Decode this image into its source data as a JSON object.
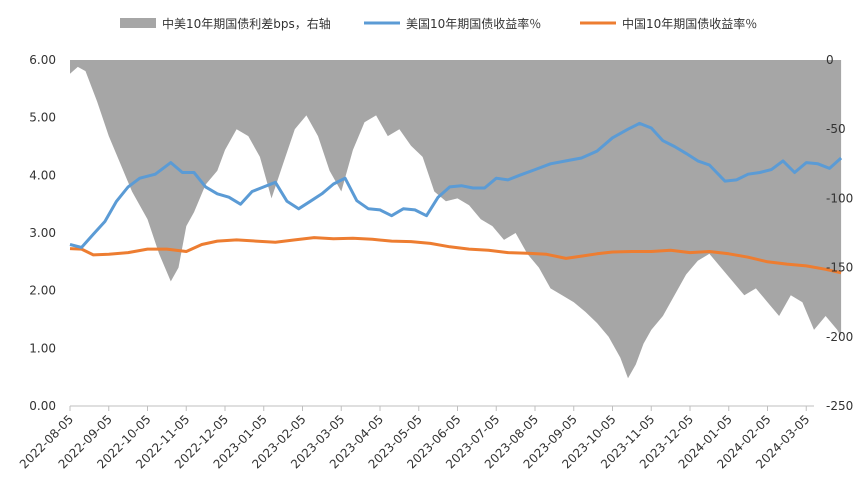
{
  "chart_data": {
    "type": "combo",
    "legend": [
      {
        "label": "中美10年期国债利差bps，右轴",
        "type": "area",
        "color": "#a6a6a6"
      },
      {
        "label": "美国10年期国债收益率％",
        "type": "line",
        "color": "#5b9bd5"
      },
      {
        "label": "中国10年期国债收益率％",
        "type": "line",
        "color": "#ed7d31"
      }
    ],
    "left_axis": {
      "min": 0,
      "max": 6,
      "ticks": [
        "0.00",
        "1.00",
        "2.00",
        "3.00",
        "4.00",
        "5.00",
        "6.00"
      ]
    },
    "right_axis": {
      "min": -250,
      "max": 0,
      "ticks": [
        "-250",
        "-200",
        "-150",
        "-100",
        "-50",
        "0"
      ]
    },
    "x_labels": [
      "2022-08-05",
      "2022-09-05",
      "2022-10-05",
      "2022-11-05",
      "2022-12-05",
      "2023-01-05",
      "2023-02-05",
      "2023-03-05",
      "2023-04-05",
      "2023-05-05",
      "2023-06-05",
      "2023-07-05",
      "2023-08-05",
      "2023-09-05",
      "2023-10-05",
      "2023-11-05",
      "2023-12-05",
      "2024-01-05",
      "2024-02-05",
      "2024-03-05"
    ],
    "series": [
      {
        "name": "美国10年期国债收益率％",
        "axis": "left",
        "points": [
          [
            0,
            2.8
          ],
          [
            0.3,
            2.75
          ],
          [
            0.6,
            2.98
          ],
          [
            0.9,
            3.2
          ],
          [
            1.2,
            3.55
          ],
          [
            1.5,
            3.8
          ],
          [
            1.8,
            3.95
          ],
          [
            2.2,
            4.02
          ],
          [
            2.6,
            4.22
          ],
          [
            2.9,
            4.05
          ],
          [
            3.2,
            4.05
          ],
          [
            3.5,
            3.8
          ],
          [
            3.8,
            3.68
          ],
          [
            4.1,
            3.62
          ],
          [
            4.4,
            3.5
          ],
          [
            4.7,
            3.72
          ],
          [
            5.0,
            3.8
          ],
          [
            5.3,
            3.88
          ],
          [
            5.6,
            3.55
          ],
          [
            5.9,
            3.42
          ],
          [
            6.2,
            3.55
          ],
          [
            6.5,
            3.68
          ],
          [
            6.8,
            3.85
          ],
          [
            7.1,
            3.95
          ],
          [
            7.4,
            3.56
          ],
          [
            7.7,
            3.42
          ],
          [
            8.0,
            3.4
          ],
          [
            8.3,
            3.3
          ],
          [
            8.6,
            3.42
          ],
          [
            8.9,
            3.4
          ],
          [
            9.2,
            3.3
          ],
          [
            9.5,
            3.62
          ],
          [
            9.8,
            3.8
          ],
          [
            10.1,
            3.82
          ],
          [
            10.4,
            3.78
          ],
          [
            10.7,
            3.78
          ],
          [
            11.0,
            3.95
          ],
          [
            11.3,
            3.92
          ],
          [
            11.6,
            4.0
          ],
          [
            12.0,
            4.1
          ],
          [
            12.4,
            4.2
          ],
          [
            12.8,
            4.25
          ],
          [
            13.2,
            4.3
          ],
          [
            13.6,
            4.42
          ],
          [
            14.0,
            4.65
          ],
          [
            14.4,
            4.8
          ],
          [
            14.7,
            4.9
          ],
          [
            15.0,
            4.82
          ],
          [
            15.3,
            4.6
          ],
          [
            15.6,
            4.5
          ],
          [
            15.9,
            4.38
          ],
          [
            16.2,
            4.25
          ],
          [
            16.5,
            4.18
          ],
          [
            16.9,
            3.9
          ],
          [
            17.2,
            3.92
          ],
          [
            17.5,
            4.02
          ],
          [
            17.8,
            4.05
          ],
          [
            18.1,
            4.1
          ],
          [
            18.4,
            4.25
          ],
          [
            18.7,
            4.05
          ],
          [
            19.0,
            4.22
          ],
          [
            19.3,
            4.2
          ],
          [
            19.6,
            4.12
          ],
          [
            19.9,
            4.3
          ]
        ]
      },
      {
        "name": "中国10年期国债收益率％",
        "axis": "left",
        "points": [
          [
            0,
            2.73
          ],
          [
            0.3,
            2.72
          ],
          [
            0.6,
            2.62
          ],
          [
            1.0,
            2.63
          ],
          [
            1.5,
            2.66
          ],
          [
            2.0,
            2.72
          ],
          [
            2.5,
            2.72
          ],
          [
            3.0,
            2.68
          ],
          [
            3.4,
            2.8
          ],
          [
            3.8,
            2.86
          ],
          [
            4.3,
            2.88
          ],
          [
            4.8,
            2.86
          ],
          [
            5.3,
            2.84
          ],
          [
            5.8,
            2.88
          ],
          [
            6.3,
            2.92
          ],
          [
            6.8,
            2.9
          ],
          [
            7.3,
            2.91
          ],
          [
            7.8,
            2.89
          ],
          [
            8.3,
            2.86
          ],
          [
            8.8,
            2.85
          ],
          [
            9.3,
            2.82
          ],
          [
            9.8,
            2.76
          ],
          [
            10.3,
            2.72
          ],
          [
            10.8,
            2.7
          ],
          [
            11.3,
            2.66
          ],
          [
            11.8,
            2.65
          ],
          [
            12.3,
            2.63
          ],
          [
            12.8,
            2.56
          ],
          [
            13.2,
            2.6
          ],
          [
            13.6,
            2.64
          ],
          [
            14.0,
            2.67
          ],
          [
            14.5,
            2.68
          ],
          [
            15.0,
            2.68
          ],
          [
            15.5,
            2.7
          ],
          [
            16.0,
            2.66
          ],
          [
            16.5,
            2.68
          ],
          [
            17.0,
            2.64
          ],
          [
            17.5,
            2.58
          ],
          [
            18.0,
            2.5
          ],
          [
            18.5,
            2.46
          ],
          [
            19.0,
            2.43
          ],
          [
            19.5,
            2.37
          ],
          [
            19.9,
            2.31
          ]
        ]
      },
      {
        "name": "中美10年期国债利差bps，右轴",
        "axis": "right",
        "points": [
          [
            0,
            -10
          ],
          [
            0.2,
            -5
          ],
          [
            0.4,
            -8
          ],
          [
            0.7,
            -30
          ],
          [
            1.0,
            -55
          ],
          [
            1.3,
            -75
          ],
          [
            1.6,
            -95
          ],
          [
            2.0,
            -115
          ],
          [
            2.3,
            -140
          ],
          [
            2.6,
            -160
          ],
          [
            2.8,
            -150
          ],
          [
            3.0,
            -120
          ],
          [
            3.2,
            -110
          ],
          [
            3.5,
            -90
          ],
          [
            3.8,
            -80
          ],
          [
            4.0,
            -65
          ],
          [
            4.3,
            -50
          ],
          [
            4.6,
            -55
          ],
          [
            4.9,
            -70
          ],
          [
            5.2,
            -100
          ],
          [
            5.5,
            -75
          ],
          [
            5.8,
            -50
          ],
          [
            6.1,
            -40
          ],
          [
            6.4,
            -55
          ],
          [
            6.7,
            -80
          ],
          [
            7.0,
            -95
          ],
          [
            7.3,
            -65
          ],
          [
            7.6,
            -45
          ],
          [
            7.9,
            -40
          ],
          [
            8.2,
            -55
          ],
          [
            8.5,
            -50
          ],
          [
            8.8,
            -62
          ],
          [
            9.1,
            -70
          ],
          [
            9.4,
            -95
          ],
          [
            9.7,
            -102
          ],
          [
            10.0,
            -100
          ],
          [
            10.3,
            -105
          ],
          [
            10.6,
            -115
          ],
          [
            10.9,
            -120
          ],
          [
            11.2,
            -130
          ],
          [
            11.5,
            -125
          ],
          [
            11.8,
            -140
          ],
          [
            12.1,
            -150
          ],
          [
            12.4,
            -165
          ],
          [
            12.7,
            -170
          ],
          [
            13.0,
            -175
          ],
          [
            13.3,
            -182
          ],
          [
            13.6,
            -190
          ],
          [
            13.9,
            -200
          ],
          [
            14.2,
            -215
          ],
          [
            14.4,
            -230
          ],
          [
            14.6,
            -220
          ],
          [
            14.8,
            -205
          ],
          [
            15.0,
            -195
          ],
          [
            15.3,
            -185
          ],
          [
            15.6,
            -170
          ],
          [
            15.9,
            -155
          ],
          [
            16.2,
            -145
          ],
          [
            16.5,
            -140
          ],
          [
            16.8,
            -150
          ],
          [
            17.1,
            -160
          ],
          [
            17.4,
            -170
          ],
          [
            17.7,
            -165
          ],
          [
            18.0,
            -175
          ],
          [
            18.3,
            -185
          ],
          [
            18.6,
            -170
          ],
          [
            18.9,
            -175
          ],
          [
            19.2,
            -195
          ],
          [
            19.5,
            -185
          ],
          [
            19.8,
            -195
          ],
          [
            19.9,
            -200
          ]
        ]
      }
    ]
  }
}
